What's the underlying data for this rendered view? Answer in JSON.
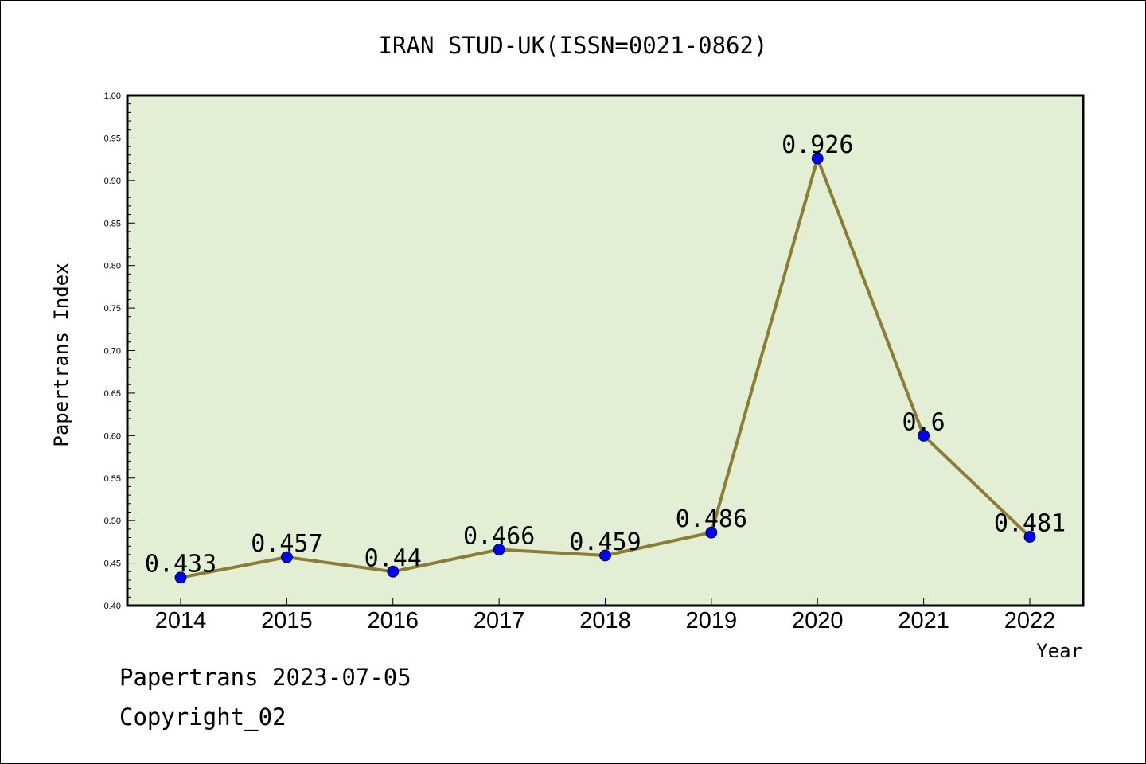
{
  "chart_data": {
    "type": "line",
    "title": "IRAN STUD-UK(ISSN=0021-0862)",
    "xlabel": "Year",
    "ylabel": "Papertrans Index",
    "categories": [
      "2014",
      "2015",
      "2016",
      "2017",
      "2018",
      "2019",
      "2020",
      "2021",
      "2022"
    ],
    "series": [
      {
        "values": [
          0.433,
          0.457,
          0.44,
          0.466,
          0.459,
          0.486,
          0.926,
          0.6,
          0.481
        ],
        "labels": [
          "0.433",
          "0.457",
          "0.44",
          "0.466",
          "0.459",
          "0.486",
          "0.926",
          "0.6",
          "0.481"
        ],
        "line_color": "#8b7d36",
        "marker_color": "#0000ff"
      }
    ],
    "ylim": [
      0.4,
      1.0
    ],
    "yticks": [
      "0.40",
      "0.45",
      "0.50",
      "0.55",
      "0.60",
      "0.65",
      "0.70",
      "0.75",
      "0.80",
      "0.85",
      "0.90",
      "0.95",
      "1.00"
    ],
    "grid": false,
    "plot_background": "#e2efd4"
  },
  "footer": {
    "line1": "Papertrans 2023-07-05",
    "line2": "Copyright_02"
  }
}
